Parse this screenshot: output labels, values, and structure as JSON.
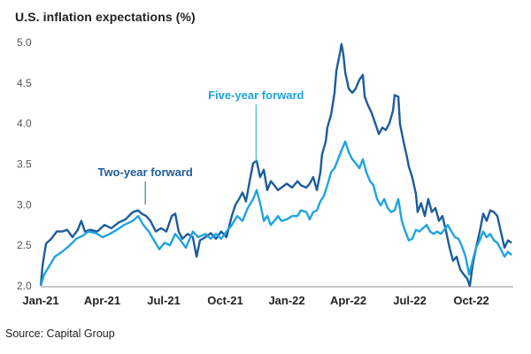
{
  "chart_data": {
    "type": "line",
    "title": "U.S. inflation expectations (%)",
    "xlabel": "",
    "ylabel": "",
    "ylim": [
      2.0,
      5.0
    ],
    "xlim_months_from_jan21": [
      0,
      23
    ],
    "y_ticks": [
      "2.0",
      "2.5",
      "3.0",
      "3.5",
      "4.0",
      "4.5",
      "5.0"
    ],
    "y_tick_values": [
      2.0,
      2.5,
      3.0,
      3.5,
      4.0,
      4.5,
      5.0
    ],
    "x_ticks": [
      "Jan-21",
      "Apr-21",
      "Jul-21",
      "Oct-21",
      "Jan-22",
      "Apr-22",
      "Jul-22",
      "Oct-22"
    ],
    "x_tick_months": [
      0,
      3,
      6,
      9,
      12,
      15,
      18,
      21
    ],
    "grid": false,
    "legend": "inline-annotations",
    "annotations": [
      {
        "text": "Two-year forward",
        "series": 0,
        "month": 5.1,
        "value": 2.98,
        "label_value": 3.35
      },
      {
        "text": "Five-year forward",
        "series": 1,
        "month": 10.5,
        "value": 3.5,
        "label_value": 4.3
      }
    ],
    "series": [
      {
        "name": "Two-year forward",
        "color": "#1d5c9c",
        "points": [
          [
            0,
            2.0
          ],
          [
            0.09,
            2.25
          ],
          [
            0.26,
            2.52
          ],
          [
            0.52,
            2.58
          ],
          [
            0.78,
            2.67
          ],
          [
            1.04,
            2.67
          ],
          [
            1.29,
            2.69
          ],
          [
            1.55,
            2.6
          ],
          [
            1.81,
            2.69
          ],
          [
            1.98,
            2.8
          ],
          [
            2.16,
            2.67
          ],
          [
            2.42,
            2.69
          ],
          [
            2.76,
            2.67
          ],
          [
            3.11,
            2.75
          ],
          [
            3.45,
            2.71
          ],
          [
            3.8,
            2.78
          ],
          [
            4.14,
            2.82
          ],
          [
            4.49,
            2.91
          ],
          [
            4.75,
            2.93
          ],
          [
            4.92,
            2.89
          ],
          [
            5.14,
            2.86
          ],
          [
            5.35,
            2.8
          ],
          [
            5.61,
            2.67
          ],
          [
            5.87,
            2.71
          ],
          [
            6.13,
            2.67
          ],
          [
            6.39,
            2.86
          ],
          [
            6.56,
            2.89
          ],
          [
            6.73,
            2.67
          ],
          [
            6.91,
            2.58
          ],
          [
            7.17,
            2.64
          ],
          [
            7.42,
            2.6
          ],
          [
            7.6,
            2.36
          ],
          [
            7.77,
            2.56
          ],
          [
            8.03,
            2.6
          ],
          [
            8.29,
            2.65
          ],
          [
            8.55,
            2.58
          ],
          [
            8.8,
            2.67
          ],
          [
            9.06,
            2.6
          ],
          [
            9.32,
            2.86
          ],
          [
            9.5,
            3.0
          ],
          [
            9.67,
            3.07
          ],
          [
            9.84,
            3.15
          ],
          [
            10.01,
            3.04
          ],
          [
            10.19,
            3.29
          ],
          [
            10.36,
            3.51
          ],
          [
            10.53,
            3.54
          ],
          [
            10.7,
            3.34
          ],
          [
            10.88,
            3.43
          ],
          [
            11.05,
            3.18
          ],
          [
            11.22,
            3.29
          ],
          [
            11.39,
            3.24
          ],
          [
            11.57,
            3.18
          ],
          [
            11.74,
            3.21
          ],
          [
            12.0,
            3.26
          ],
          [
            12.26,
            3.21
          ],
          [
            12.52,
            3.29
          ],
          [
            12.69,
            3.24
          ],
          [
            12.95,
            3.21
          ],
          [
            13.12,
            3.26
          ],
          [
            13.29,
            3.34
          ],
          [
            13.47,
            3.18
          ],
          [
            13.64,
            3.4
          ],
          [
            13.72,
            3.62
          ],
          [
            13.9,
            3.78
          ],
          [
            13.98,
            3.95
          ],
          [
            14.16,
            4.11
          ],
          [
            14.33,
            4.38
          ],
          [
            14.42,
            4.65
          ],
          [
            14.59,
            4.87
          ],
          [
            14.67,
            4.98
          ],
          [
            14.76,
            4.85
          ],
          [
            14.85,
            4.63
          ],
          [
            15.02,
            4.43
          ],
          [
            15.19,
            4.38
          ],
          [
            15.36,
            4.43
          ],
          [
            15.54,
            4.54
          ],
          [
            15.71,
            4.6
          ],
          [
            15.8,
            4.33
          ],
          [
            15.97,
            4.22
          ],
          [
            16.14,
            4.13
          ],
          [
            16.32,
            4.0
          ],
          [
            16.49,
            3.87
          ],
          [
            16.66,
            3.95
          ],
          [
            16.83,
            3.92
          ],
          [
            17.0,
            4.0
          ],
          [
            17.18,
            4.16
          ],
          [
            17.26,
            4.35
          ],
          [
            17.44,
            4.33
          ],
          [
            17.52,
            4.0
          ],
          [
            17.69,
            3.78
          ],
          [
            17.87,
            3.58
          ],
          [
            17.95,
            3.47
          ],
          [
            18.12,
            3.34
          ],
          [
            18.3,
            3.13
          ],
          [
            18.38,
            2.91
          ],
          [
            18.55,
            3.02
          ],
          [
            18.73,
            2.86
          ],
          [
            18.9,
            3.07
          ],
          [
            19.07,
            2.91
          ],
          [
            19.25,
            2.96
          ],
          [
            19.42,
            2.8
          ],
          [
            19.59,
            2.86
          ],
          [
            19.77,
            2.67
          ],
          [
            19.94,
            2.47
          ],
          [
            20.11,
            2.31
          ],
          [
            20.28,
            2.36
          ],
          [
            20.46,
            2.2
          ],
          [
            20.63,
            2.14
          ],
          [
            20.8,
            2.09
          ],
          [
            20.93,
            2.0
          ],
          [
            21.06,
            2.25
          ],
          [
            21.23,
            2.47
          ],
          [
            21.41,
            2.67
          ],
          [
            21.58,
            2.89
          ],
          [
            21.75,
            2.8
          ],
          [
            21.92,
            2.93
          ],
          [
            22.1,
            2.91
          ],
          [
            22.27,
            2.86
          ],
          [
            22.44,
            2.67
          ],
          [
            22.62,
            2.47
          ],
          [
            22.79,
            2.56
          ],
          [
            22.96,
            2.53
          ]
        ]
      },
      {
        "name": "Five-year forward",
        "color": "#1fa3dd",
        "points": [
          [
            0,
            2.0
          ],
          [
            0.17,
            2.14
          ],
          [
            0.43,
            2.25
          ],
          [
            0.69,
            2.36
          ],
          [
            1.04,
            2.42
          ],
          [
            1.38,
            2.49
          ],
          [
            1.73,
            2.58
          ],
          [
            2.07,
            2.62
          ],
          [
            2.33,
            2.67
          ],
          [
            2.68,
            2.65
          ],
          [
            3.02,
            2.6
          ],
          [
            3.37,
            2.64
          ],
          [
            3.71,
            2.69
          ],
          [
            4.06,
            2.75
          ],
          [
            4.49,
            2.8
          ],
          [
            4.75,
            2.86
          ],
          [
            5.01,
            2.75
          ],
          [
            5.27,
            2.67
          ],
          [
            5.53,
            2.56
          ],
          [
            5.78,
            2.45
          ],
          [
            6.04,
            2.53
          ],
          [
            6.3,
            2.5
          ],
          [
            6.56,
            2.64
          ],
          [
            6.82,
            2.56
          ],
          [
            7.08,
            2.47
          ],
          [
            7.42,
            2.67
          ],
          [
            7.68,
            2.6
          ],
          [
            8.03,
            2.64
          ],
          [
            8.29,
            2.58
          ],
          [
            8.55,
            2.64
          ],
          [
            8.8,
            2.58
          ],
          [
            9.06,
            2.67
          ],
          [
            9.32,
            2.75
          ],
          [
            9.58,
            2.86
          ],
          [
            9.84,
            2.8
          ],
          [
            10.1,
            2.96
          ],
          [
            10.36,
            3.07
          ],
          [
            10.53,
            3.18
          ],
          [
            10.7,
            3.02
          ],
          [
            10.88,
            2.8
          ],
          [
            11.05,
            2.86
          ],
          [
            11.22,
            2.75
          ],
          [
            11.39,
            2.8
          ],
          [
            11.57,
            2.86
          ],
          [
            11.74,
            2.8
          ],
          [
            12.0,
            2.82
          ],
          [
            12.26,
            2.86
          ],
          [
            12.52,
            2.86
          ],
          [
            12.69,
            2.93
          ],
          [
            12.95,
            2.91
          ],
          [
            13.12,
            2.82
          ],
          [
            13.29,
            2.91
          ],
          [
            13.47,
            2.93
          ],
          [
            13.64,
            3.04
          ],
          [
            13.81,
            3.11
          ],
          [
            13.98,
            3.24
          ],
          [
            14.16,
            3.4
          ],
          [
            14.33,
            3.45
          ],
          [
            14.5,
            3.56
          ],
          [
            14.67,
            3.67
          ],
          [
            14.85,
            3.78
          ],
          [
            15.02,
            3.65
          ],
          [
            15.19,
            3.56
          ],
          [
            15.36,
            3.51
          ],
          [
            15.54,
            3.45
          ],
          [
            15.71,
            3.56
          ],
          [
            15.88,
            3.4
          ],
          [
            16.06,
            3.29
          ],
          [
            16.23,
            3.24
          ],
          [
            16.4,
            3.07
          ],
          [
            16.58,
            2.99
          ],
          [
            16.75,
            3.07
          ],
          [
            16.92,
            2.96
          ],
          [
            17.09,
            2.91
          ],
          [
            17.26,
            2.93
          ],
          [
            17.44,
            3.07
          ],
          [
            17.61,
            2.8
          ],
          [
            17.78,
            2.67
          ],
          [
            17.95,
            2.56
          ],
          [
            18.12,
            2.58
          ],
          [
            18.3,
            2.69
          ],
          [
            18.47,
            2.67
          ],
          [
            18.64,
            2.71
          ],
          [
            18.82,
            2.75
          ],
          [
            18.99,
            2.67
          ],
          [
            19.16,
            2.64
          ],
          [
            19.33,
            2.67
          ],
          [
            19.51,
            2.64
          ],
          [
            19.68,
            2.69
          ],
          [
            19.85,
            2.75
          ],
          [
            20.03,
            2.67
          ],
          [
            20.2,
            2.6
          ],
          [
            20.37,
            2.58
          ],
          [
            20.54,
            2.49
          ],
          [
            20.72,
            2.36
          ],
          [
            20.89,
            2.14
          ],
          [
            21.06,
            2.31
          ],
          [
            21.23,
            2.47
          ],
          [
            21.41,
            2.56
          ],
          [
            21.58,
            2.67
          ],
          [
            21.75,
            2.6
          ],
          [
            21.92,
            2.64
          ],
          [
            22.1,
            2.56
          ],
          [
            22.27,
            2.53
          ],
          [
            22.44,
            2.45
          ],
          [
            22.62,
            2.36
          ],
          [
            22.79,
            2.42
          ],
          [
            22.96,
            2.38
          ]
        ]
      }
    ],
    "source": "Source: Capital Group"
  }
}
